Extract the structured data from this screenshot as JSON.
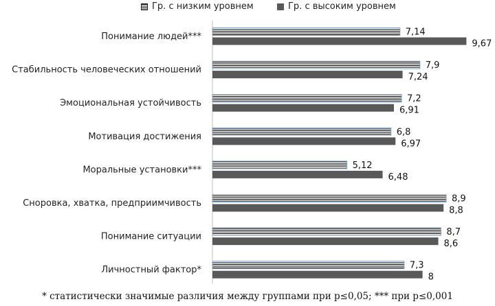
{
  "chart_data": {
    "type": "bar",
    "orientation": "horizontal",
    "categories": [
      "Понимание людей***",
      "Стабильность человеческих отношений",
      "Эмоциональная устойчивость",
      "Мотивация достижения",
      "Моральные установки***",
      "Сноровка, хватка, предприимчивость",
      "Понимание ситуации",
      "Личностный фактор*"
    ],
    "series": [
      {
        "name": "Гр. с низким уровнем",
        "values": [
          7.14,
          7.9,
          7.2,
          6.8,
          5.12,
          8.9,
          8.7,
          7.3
        ],
        "labels": [
          "7,14",
          "7,9",
          "7,2",
          "6,8",
          "5,12",
          "8,9",
          "8,7",
          "7,3"
        ],
        "pattern": "horizontal-stripes"
      },
      {
        "name": "Гр. с высоким уровнем",
        "values": [
          9.67,
          7.24,
          6.91,
          6.97,
          6.48,
          8.8,
          8.6,
          8
        ],
        "labels": [
          "9,67",
          "7,24",
          "6,91",
          "6,97",
          "6,48",
          "8,8",
          "8,6",
          "8"
        ],
        "color": "#595959"
      }
    ],
    "xlim": [
      0,
      10
    ],
    "legend_position": "top",
    "grid": false,
    "footnote": "* статистически значимые различия между группами при р≤0,05; *** при р≤0,001"
  }
}
